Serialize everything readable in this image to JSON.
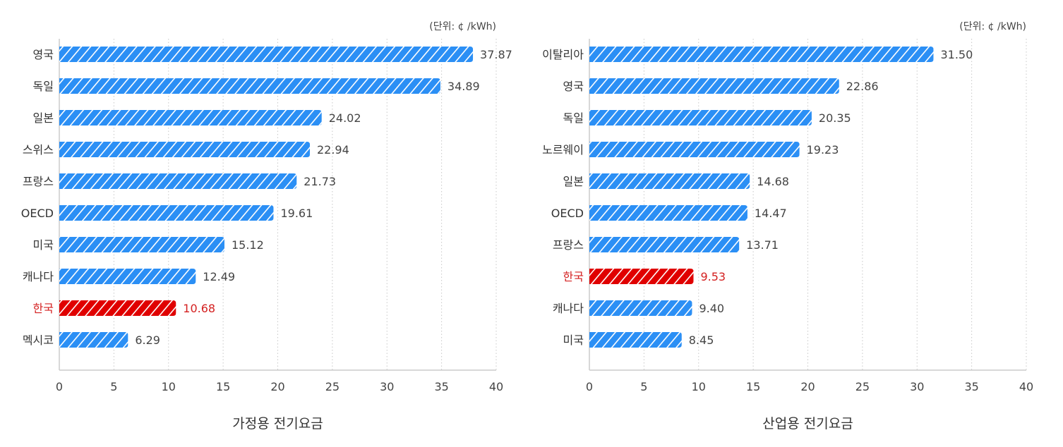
{
  "chart_data": [
    {
      "type": "bar",
      "orientation": "horizontal",
      "title": "가정용 전기요금",
      "unit_note": "(단위: ¢ /kWh)",
      "categories": [
        "영국",
        "독일",
        "일본",
        "스위스",
        "프랑스",
        "OECD",
        "미국",
        "캐나다",
        "한국",
        "멕시코"
      ],
      "values": [
        37.87,
        34.89,
        24.02,
        22.94,
        21.73,
        19.61,
        15.12,
        12.49,
        10.68,
        6.29
      ],
      "highlight": "한국",
      "xlim": [
        0,
        40
      ],
      "xticks": [
        "0",
        "5",
        "10",
        "15",
        "20",
        "25",
        "30",
        "35",
        "40"
      ],
      "grid": "vertical dotted",
      "bar_fill": "hatched"
    },
    {
      "type": "bar",
      "orientation": "horizontal",
      "title": "산업용 전기요금",
      "unit_note": "(단위: ¢ /kWh)",
      "categories": [
        "이탈리아",
        "영국",
        "독일",
        "노르웨이",
        "일본",
        "OECD",
        "프랑스",
        "한국",
        "캐나다",
        "미국"
      ],
      "values": [
        31.5,
        22.86,
        20.35,
        19.23,
        14.68,
        14.47,
        13.71,
        9.53,
        9.4,
        8.45
      ],
      "highlight": "한국",
      "xlim": [
        0,
        40
      ],
      "xticks": [
        "0",
        "5",
        "10",
        "15",
        "20",
        "25",
        "30",
        "35",
        "40"
      ],
      "grid": "vertical dotted",
      "bar_fill": "hatched"
    }
  ],
  "colors": {
    "bar": "#2b8ff5",
    "highlight": "#e00000",
    "highlight_text": "#d42020",
    "text": "#444444",
    "axis": "#cccccc"
  }
}
